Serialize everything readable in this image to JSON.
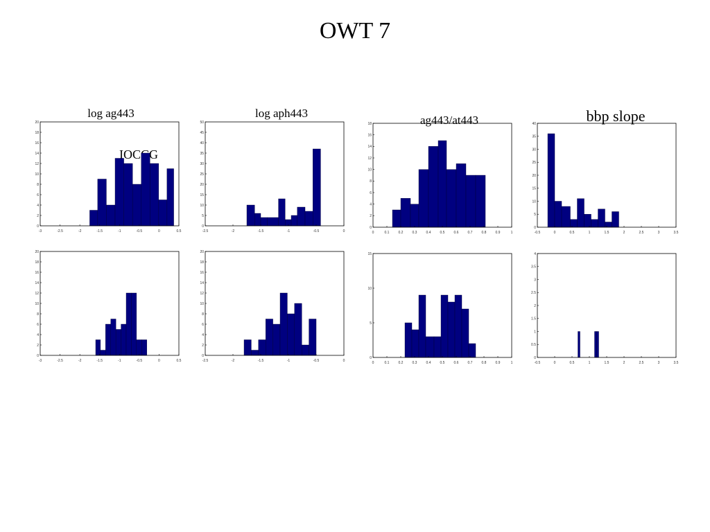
{
  "page": {
    "title": "OWT 7",
    "bar_color": "#000080"
  },
  "chart_data": [
    {
      "id": "top-log-ag443",
      "type": "bar",
      "title": "log ag443",
      "annotation": "IOCCG",
      "xlim": [
        -3,
        0.5
      ],
      "ylim": [
        0,
        20
      ],
      "xticks": [
        "-3",
        "-2.5",
        "-2",
        "-1.5",
        "-1",
        "-0.5",
        "0",
        "0.5"
      ],
      "yticks": [
        "0",
        "2",
        "4",
        "6",
        "8",
        "10",
        "12",
        "14",
        "16",
        "18",
        "20"
      ],
      "bin_edges": [
        -1.75,
        -1.55,
        -1.33,
        -1.11,
        -0.89,
        -0.67,
        -0.45,
        -0.23,
        -0.01,
        0.2,
        0.37
      ],
      "counts": [
        3,
        9,
        4,
        13,
        12,
        8,
        14,
        12,
        5,
        11
      ]
    },
    {
      "id": "top-log-aph443",
      "type": "bar",
      "title": "log aph443",
      "xlim": [
        -2.5,
        0
      ],
      "ylim": [
        0,
        50
      ],
      "xticks": [
        "-2.5",
        "-2",
        "-1.5",
        "-1",
        "-0.5",
        "0"
      ],
      "yticks": [
        "0",
        "5",
        "10",
        "15",
        "20",
        "25",
        "30",
        "35",
        "40",
        "45",
        "50"
      ],
      "bin_edges": [
        -1.75,
        -1.61,
        -1.5,
        -1.38,
        -1.18,
        -1.06,
        -0.95,
        -0.84,
        -0.7,
        -0.56,
        -0.42
      ],
      "counts": [
        10,
        6,
        4,
        4,
        13,
        3,
        5,
        9,
        7,
        37
      ]
    },
    {
      "id": "top-ag443-at443",
      "type": "bar",
      "title": "ag443/at443",
      "xlim": [
        0,
        1
      ],
      "ylim": [
        0,
        18
      ],
      "xticks": [
        "0",
        "0.1",
        "0.2",
        "0.3",
        "0.4",
        "0.5",
        "0.6",
        "0.7",
        "0.8",
        "0.9",
        "1"
      ],
      "yticks": [
        "0",
        "2",
        "4",
        "6",
        "8",
        "10",
        "12",
        "14",
        "16",
        "18"
      ],
      "bin_edges": [
        0.14,
        0.2,
        0.27,
        0.33,
        0.4,
        0.47,
        0.53,
        0.6,
        0.67,
        0.74,
        0.81
      ],
      "counts": [
        3,
        5,
        4,
        10,
        14,
        15,
        10,
        11,
        9,
        9
      ]
    },
    {
      "id": "top-bbp-slope",
      "type": "bar",
      "title": "bbp slope",
      "xlim": [
        -0.5,
        3.5
      ],
      "ylim": [
        0,
        40
      ],
      "xticks": [
        "-0.5",
        "0",
        "0.5",
        "1",
        "1.5",
        "2",
        "2.5",
        "3",
        "3.5"
      ],
      "yticks": [
        "0",
        "5",
        "10",
        "15",
        "20",
        "25",
        "30",
        "35",
        "40"
      ],
      "bin_edges": [
        -0.2,
        0,
        0.2,
        0.45,
        0.65,
        0.85,
        1.05,
        1.25,
        1.45,
        1.65,
        1.85
      ],
      "counts": [
        36,
        10,
        8,
        3,
        11,
        5,
        3,
        7,
        2,
        6
      ]
    },
    {
      "id": "bottom-log-ag443",
      "type": "bar",
      "title": "",
      "xlim": [
        -3,
        0.5
      ],
      "ylim": [
        0,
        20
      ],
      "xticks": [
        "-3",
        "-2.5",
        "-2",
        "-1.5",
        "-1",
        "-0.5",
        "0",
        "0.5"
      ],
      "yticks": [
        "0",
        "2",
        "4",
        "6",
        "8",
        "10",
        "12",
        "14",
        "16",
        "18",
        "20"
      ],
      "bin_edges": [
        -1.6,
        -1.48,
        -1.35,
        -1.22,
        -1.09,
        -0.96,
        -0.83,
        -0.7,
        -0.57,
        -0.44,
        -0.31
      ],
      "counts": [
        3,
        1,
        6,
        7,
        5,
        6,
        12,
        12,
        3,
        3
      ]
    },
    {
      "id": "bottom-log-aph443",
      "type": "bar",
      "title": "",
      "xlim": [
        -2.5,
        0
      ],
      "ylim": [
        0,
        20
      ],
      "xticks": [
        "-2.5",
        "-2",
        "-1.5",
        "-1",
        "-0.5",
        "0"
      ],
      "yticks": [
        "0",
        "2",
        "4",
        "6",
        "8",
        "10",
        "12",
        "14",
        "16",
        "18",
        "20"
      ],
      "bin_edges": [
        -1.8,
        -1.67,
        -1.54,
        -1.41,
        -1.28,
        -1.15,
        -1.02,
        -0.89,
        -0.76,
        -0.63,
        -0.5
      ],
      "counts": [
        3,
        1,
        3,
        7,
        6,
        12,
        8,
        10,
        2,
        7
      ]
    },
    {
      "id": "bottom-ag443-at443",
      "type": "bar",
      "title": "",
      "xlim": [
        0,
        1
      ],
      "ylim": [
        0,
        15
      ],
      "xticks": [
        "0",
        "0.1",
        "0.2",
        "0.3",
        "0.4",
        "0.5",
        "0.6",
        "0.7",
        "0.8",
        "0.9",
        "1"
      ],
      "yticks": [
        "0",
        "5",
        "10",
        "15"
      ],
      "bin_edges": [
        0.23,
        0.28,
        0.33,
        0.38,
        0.44,
        0.49,
        0.54,
        0.59,
        0.64,
        0.69,
        0.74
      ],
      "counts": [
        5,
        4,
        9,
        3,
        3,
        9,
        8,
        9,
        7,
        2
      ]
    },
    {
      "id": "bottom-bbp-slope",
      "type": "bar",
      "title": "",
      "xlim": [
        -0.5,
        3.5
      ],
      "ylim": [
        0,
        4
      ],
      "xticks": [
        "-0.5",
        "0",
        "0.5",
        "1",
        "1.5",
        "2",
        "2.5",
        "3",
        "3.5"
      ],
      "yticks": [
        "0",
        "0.5",
        "1",
        "1.5",
        "2",
        "2.5",
        "3",
        "3.5",
        "4"
      ],
      "bin_edges": [
        0.67,
        0.73,
        0.79,
        0.85,
        0.91,
        0.97,
        1.03,
        1.09,
        1.15,
        1.21,
        1.27
      ],
      "counts": [
        1,
        0,
        0,
        0,
        0,
        0,
        0,
        0,
        1,
        1
      ]
    }
  ]
}
